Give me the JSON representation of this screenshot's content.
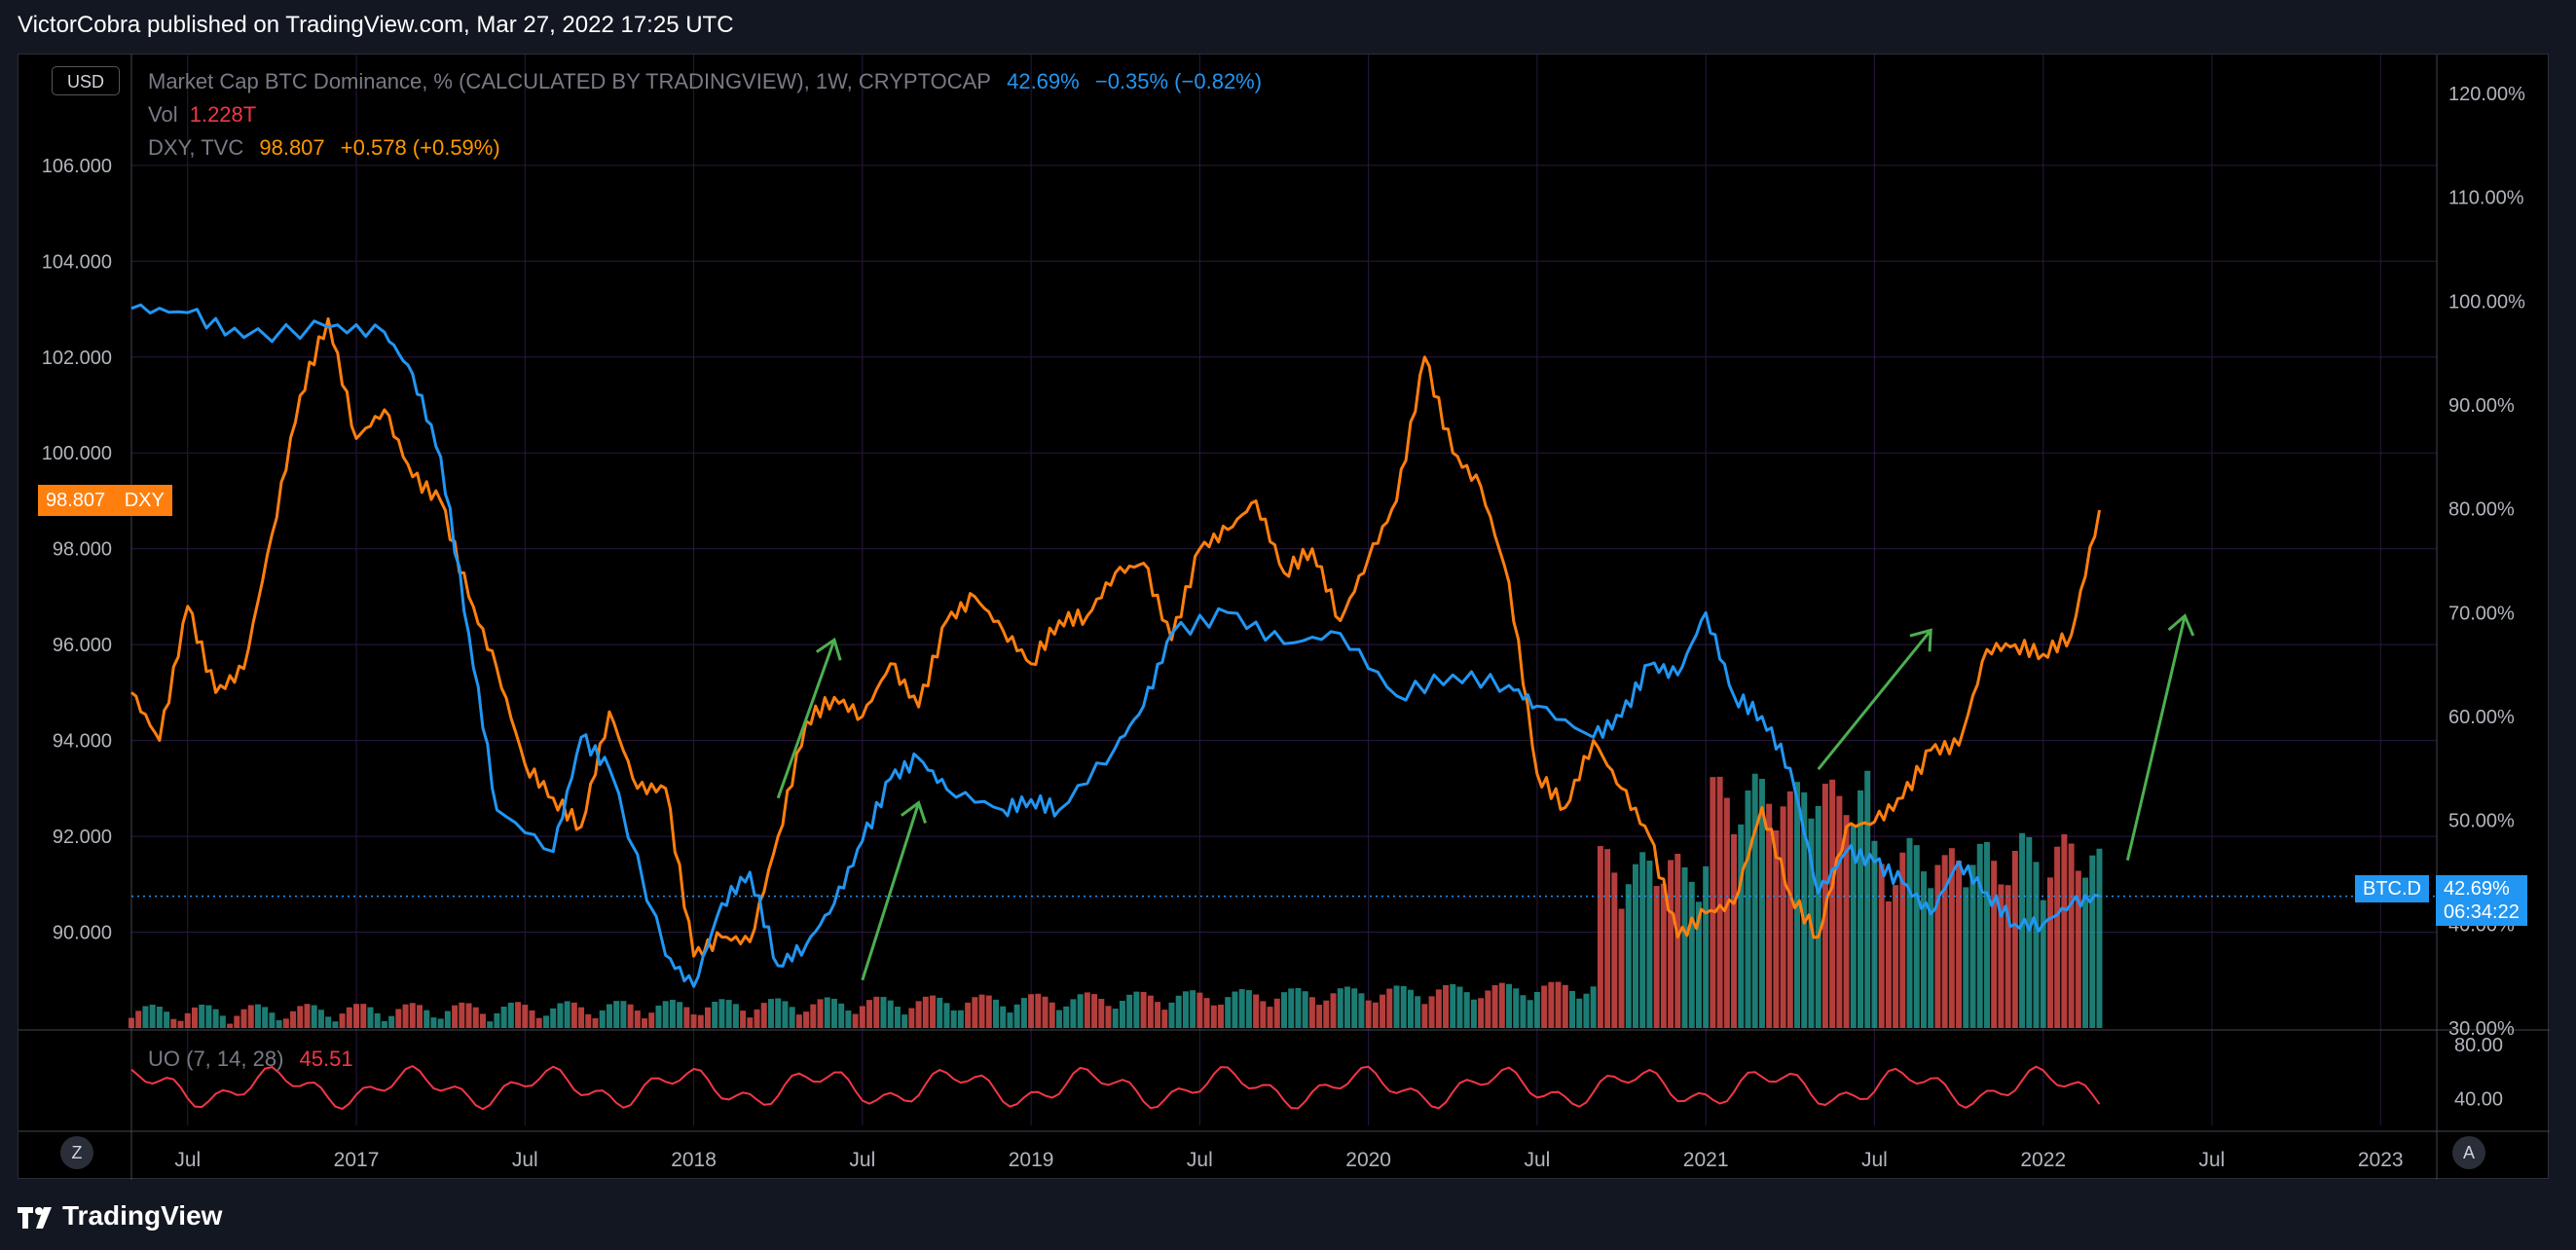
{
  "header": {
    "title": "VictorCobra published on TradingView.com, Mar 27, 2022 17:25 UTC"
  },
  "footer": {
    "brand": "TradingView"
  },
  "controls": {
    "currency": "USD",
    "zoom_label": "Z",
    "auto_label": "A"
  },
  "legend": {
    "btcd": {
      "name": "Market Cap BTC Dominance, % (CALCULATED BY TRADINGVIEW), 1W, CRYPTOCAP",
      "value": "42.69%",
      "change": "−0.35% (−0.82%)"
    },
    "vol": {
      "name": "Vol",
      "value": "1.228T"
    },
    "dxy": {
      "name": "DXY, TVC",
      "value": "98.807",
      "change": "+0.578 (+0.59%)"
    },
    "uo": {
      "name": "UO (7, 14, 28)",
      "value": "45.51"
    }
  },
  "tags": {
    "dxy_price": "98.807",
    "dxy_label": "DXY",
    "btcd_label": "BTC.D",
    "btcd_price": "42.69%",
    "btcd_timer": "06:34:22"
  },
  "colors": {
    "btcd": "#2196f3",
    "dxy": "#ff7f0e",
    "uo": "#f23645",
    "vol_up": "#26a69a",
    "vol_down": "#ef5350",
    "arrows": "#4caf50",
    "grid": "#2a1840"
  },
  "chart_data": {
    "type": "line",
    "x_axis": {
      "ticks": [
        "Jul",
        "2017",
        "Jul",
        "2018",
        "Jul",
        "2019",
        "Jul",
        "2020",
        "Jul",
        "2021",
        "Jul",
        "2022",
        "Jul",
        "2023"
      ],
      "range": [
        "2016-05",
        "2023-03"
      ]
    },
    "left_axis": {
      "ticks": [
        "106.000",
        "104.000",
        "102.000",
        "100.000",
        "98.000",
        "96.000",
        "94.000",
        "92.000",
        "90.000"
      ],
      "range": [
        88.0,
        107.5
      ]
    },
    "right_axis": {
      "ticks": [
        "120.00%",
        "110.00%",
        "100.00%",
        "90.00%",
        "80.00%",
        "70.00%",
        "60.00%",
        "50.00%",
        "40.00%",
        "30.00%"
      ],
      "range": [
        30,
        120
      ]
    },
    "uo_axis": {
      "ticks": [
        "80.00",
        "40.00"
      ]
    },
    "series": [
      {
        "name": "BTC.D",
        "axis": "right",
        "points": [
          [
            "2016-05",
            99.3
          ],
          [
            "2016-07",
            98.9
          ],
          [
            "2016-09",
            96.5
          ],
          [
            "2016-12",
            97.5
          ],
          [
            "2017-02",
            97.0
          ],
          [
            "2017-03",
            93.0
          ],
          [
            "2017-04",
            85.0
          ],
          [
            "2017-05",
            68.0
          ],
          [
            "2017-06",
            51.0
          ],
          [
            "2017-08",
            47.0
          ],
          [
            "2017-09",
            58.0
          ],
          [
            "2017-10",
            55.0
          ],
          [
            "2017-12",
            37.0
          ],
          [
            "2018-01",
            34.0
          ],
          [
            "2018-02",
            42.0
          ],
          [
            "2018-03",
            45.0
          ],
          [
            "2018-04",
            36.0
          ],
          [
            "2018-05",
            38.0
          ],
          [
            "2018-06",
            42.0
          ],
          [
            "2018-07",
            48.0
          ],
          [
            "2018-08",
            54.0
          ],
          [
            "2018-09",
            56.0
          ],
          [
            "2018-10",
            53.0
          ],
          [
            "2018-12",
            51.0
          ],
          [
            "2019-01",
            52.0
          ],
          [
            "2019-02",
            51.0
          ],
          [
            "2019-04",
            57.0
          ],
          [
            "2019-05",
            61.0
          ],
          [
            "2019-06",
            68.0
          ],
          [
            "2019-08",
            70.0
          ],
          [
            "2019-10",
            67.0
          ],
          [
            "2019-12",
            68.0
          ],
          [
            "2020-02",
            62.0
          ],
          [
            "2020-04",
            64.0
          ],
          [
            "2020-06",
            63.0
          ],
          [
            "2020-07",
            61.0
          ],
          [
            "2020-09",
            58.0
          ],
          [
            "2020-10",
            60.0
          ],
          [
            "2020-11",
            65.0
          ],
          [
            "2020-12",
            64.0
          ],
          [
            "2021-01",
            70.0
          ],
          [
            "2021-02",
            62.0
          ],
          [
            "2021-03",
            60.0
          ],
          [
            "2021-04",
            55.0
          ],
          [
            "2021-05",
            43.0
          ],
          [
            "2021-06",
            47.0
          ],
          [
            "2021-07",
            46.0
          ],
          [
            "2021-08",
            44.0
          ],
          [
            "2021-09",
            41.0
          ],
          [
            "2021-10",
            46.0
          ],
          [
            "2021-11",
            43.0
          ],
          [
            "2021-12",
            40.0
          ],
          [
            "2022-01",
            40.0
          ],
          [
            "2022-02",
            42.0
          ],
          [
            "2022-03",
            42.69
          ]
        ]
      },
      {
        "name": "DXY",
        "axis": "left",
        "points": [
          [
            "2016-05",
            95.0
          ],
          [
            "2016-06",
            94.0
          ],
          [
            "2016-07",
            96.8
          ],
          [
            "2016-08",
            95.0
          ],
          [
            "2016-09",
            95.5
          ],
          [
            "2016-10",
            98.3
          ],
          [
            "2016-11",
            101.2
          ],
          [
            "2016-12",
            102.8
          ],
          [
            "2017-01",
            100.3
          ],
          [
            "2017-02",
            100.9
          ],
          [
            "2017-03",
            99.5
          ],
          [
            "2017-04",
            99.0
          ],
          [
            "2017-05",
            97.0
          ],
          [
            "2017-06",
            95.5
          ],
          [
            "2017-07",
            93.5
          ],
          [
            "2017-08",
            92.8
          ],
          [
            "2017-09",
            92.2
          ],
          [
            "2017-10",
            94.6
          ],
          [
            "2017-11",
            93.0
          ],
          [
            "2017-12",
            93.0
          ],
          [
            "2018-01",
            89.5
          ],
          [
            "2018-02",
            89.9
          ],
          [
            "2018-03",
            89.8
          ],
          [
            "2018-04",
            92.0
          ],
          [
            "2018-05",
            94.4
          ],
          [
            "2018-06",
            94.9
          ],
          [
            "2018-07",
            94.5
          ],
          [
            "2018-08",
            95.6
          ],
          [
            "2018-09",
            94.7
          ],
          [
            "2018-10",
            96.5
          ],
          [
            "2018-11",
            97.0
          ],
          [
            "2018-12",
            96.3
          ],
          [
            "2019-01",
            95.6
          ],
          [
            "2019-02",
            96.5
          ],
          [
            "2019-03",
            96.6
          ],
          [
            "2019-04",
            97.5
          ],
          [
            "2019-05",
            97.7
          ],
          [
            "2019-06",
            96.1
          ],
          [
            "2019-07",
            98.0
          ],
          [
            "2019-08",
            98.4
          ],
          [
            "2019-09",
            99.0
          ],
          [
            "2019-10",
            97.5
          ],
          [
            "2019-11",
            98.0
          ],
          [
            "2019-12",
            96.5
          ],
          [
            "2020-01",
            97.8
          ],
          [
            "2020-02",
            99.0
          ],
          [
            "2020-03",
            102.0
          ],
          [
            "2020-04",
            100.0
          ],
          [
            "2020-05",
            99.3
          ],
          [
            "2020-06",
            97.3
          ],
          [
            "2020-07",
            93.3
          ],
          [
            "2020-08",
            92.6
          ],
          [
            "2020-09",
            94.0
          ],
          [
            "2020-10",
            93.0
          ],
          [
            "2020-11",
            92.0
          ],
          [
            "2020-12",
            89.9
          ],
          [
            "2021-01",
            90.4
          ],
          [
            "2021-02",
            90.6
          ],
          [
            "2021-03",
            92.6
          ],
          [
            "2021-04",
            90.8
          ],
          [
            "2021-05",
            89.9
          ],
          [
            "2021-06",
            92.2
          ],
          [
            "2021-07",
            92.3
          ],
          [
            "2021-08",
            92.8
          ],
          [
            "2021-09",
            93.8
          ],
          [
            "2021-10",
            93.9
          ],
          [
            "2021-11",
            95.9
          ],
          [
            "2021-12",
            96.0
          ],
          [
            "2022-01",
            95.8
          ],
          [
            "2022-02",
            96.2
          ],
          [
            "2022-03",
            98.807
          ]
        ]
      }
    ],
    "volume": {
      "series": "Vol",
      "trend": "low 2016-2017, rising from 2019, peak around 2021-05"
    },
    "oscillator": {
      "name": "UO (7, 14, 28)",
      "last": 45.51
    },
    "annotations": [
      "green arrow 2018-04 to 2018-06 up",
      "green arrow 2018-07 to 2018-09 up",
      "green arrow 2021-05 to 2021-09 up",
      "green arrow 2022-04 to 2022-06 up"
    ]
  }
}
